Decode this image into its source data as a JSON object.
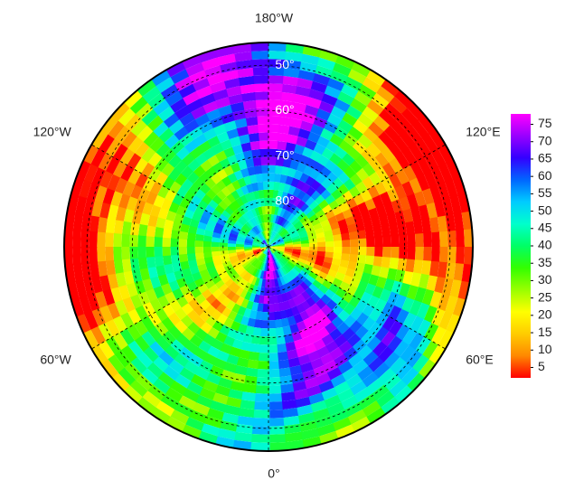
{
  "map": {
    "projection": "north-polar",
    "lat_limit": 45,
    "lon_labels": [
      {
        "value": 180,
        "label": "180°W"
      },
      {
        "value": -120,
        "label": "120°W"
      },
      {
        "value": 120,
        "label": "120°E"
      },
      {
        "value": -60,
        "label": "60°W"
      },
      {
        "value": 60,
        "label": "60°E"
      },
      {
        "value": 0,
        "label": "0°"
      }
    ],
    "lat_labels": [
      {
        "value": 50,
        "label": "50°"
      },
      {
        "value": 60,
        "label": "60°"
      },
      {
        "value": 70,
        "label": "70°"
      },
      {
        "value": 80,
        "label": "80°"
      }
    ],
    "colorbar": {
      "clim": [
        2,
        78
      ],
      "ticks": [
        5,
        10,
        15,
        20,
        25,
        30,
        35,
        40,
        45,
        50,
        55,
        60,
        65,
        70,
        75
      ],
      "colormap": [
        "#ff0000",
        "#ff8800",
        "#ffcc00",
        "#ffff00",
        "#99ff00",
        "#33ff00",
        "#00ff66",
        "#00ffcc",
        "#00ccff",
        "#0066ff",
        "#3300ff",
        "#9900ff",
        "#ff00ff"
      ]
    }
  }
}
